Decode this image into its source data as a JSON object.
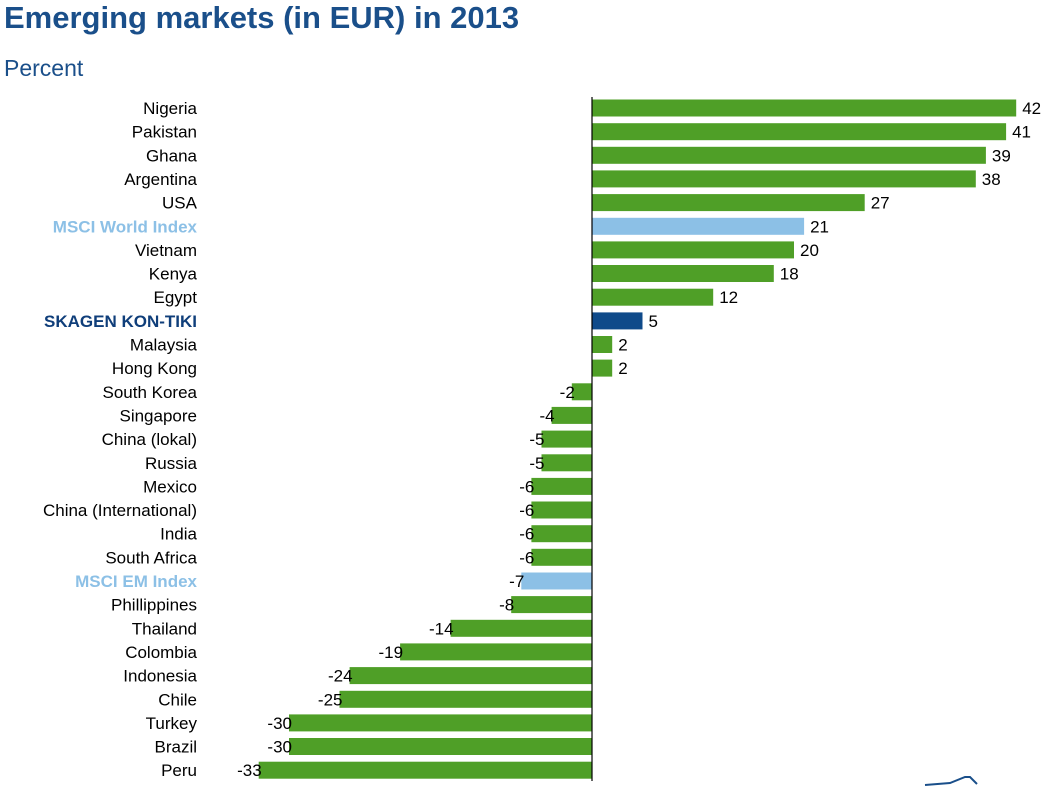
{
  "header": {
    "title": "Emerging markets (in EUR) in 2013",
    "subtitle": "Percent"
  },
  "colors": {
    "market": "#4f9f27",
    "msci": "#8cc0e6",
    "skagen": "#0f4a8a",
    "axis": "#000000"
  },
  "chart_data": {
    "type": "bar",
    "orientation": "horizontal",
    "title": "Emerging markets (in EUR) in 2013",
    "subtitle": "Percent",
    "xlabel": "",
    "ylabel": "",
    "xlim": [
      -33,
      42
    ],
    "grid": false,
    "legend": "none",
    "categories": [
      "Nigeria",
      "Pakistan",
      "Ghana",
      "Argentina",
      "USA",
      "MSCI World Index",
      "Vietnam",
      "Kenya",
      "Egypt",
      "SKAGEN KON-TIKI",
      "Malaysia",
      "Hong Kong",
      "South Korea",
      "Singapore",
      "China (lokal)",
      "Russia",
      "Mexico",
      "China (International)",
      "India",
      "South Africa",
      "MSCI EM Index",
      "Phillippines",
      "Thailand",
      "Colombia",
      "Indonesia",
      "Chile",
      "Turkey",
      "Brazil",
      "Peru"
    ],
    "values": [
      42,
      41,
      39,
      38,
      27,
      21,
      20,
      18,
      12,
      5,
      2,
      2,
      -2,
      -4,
      -5,
      -5,
      -6,
      -6,
      -6,
      -6,
      -7,
      -8,
      -14,
      -19,
      -24,
      -25,
      -30,
      -30,
      -33
    ],
    "highlight": {
      "MSCI World Index": "msci",
      "MSCI EM Index": "msci",
      "SKAGEN KON-TIKI": "skagen"
    }
  }
}
